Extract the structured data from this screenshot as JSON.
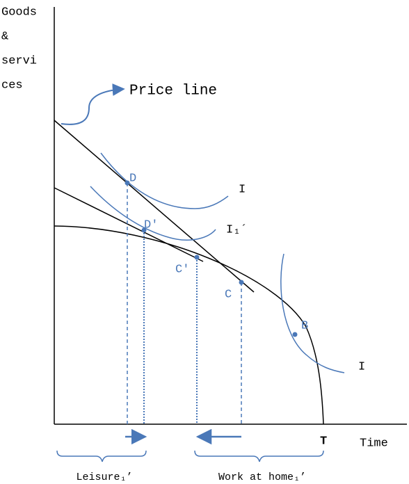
{
  "axes": {
    "y_label": [
      "Goods",
      "&",
      "servi",
      "ces"
    ],
    "x_label": "Time",
    "x_end": "T"
  },
  "callout": "Price line",
  "points": [
    "D",
    "D′",
    "C′",
    "C",
    "B"
  ],
  "curves": [
    "I",
    "I₁´",
    "I"
  ],
  "brackets": [
    "Leisure₁’",
    "Work at home₁’"
  ]
}
